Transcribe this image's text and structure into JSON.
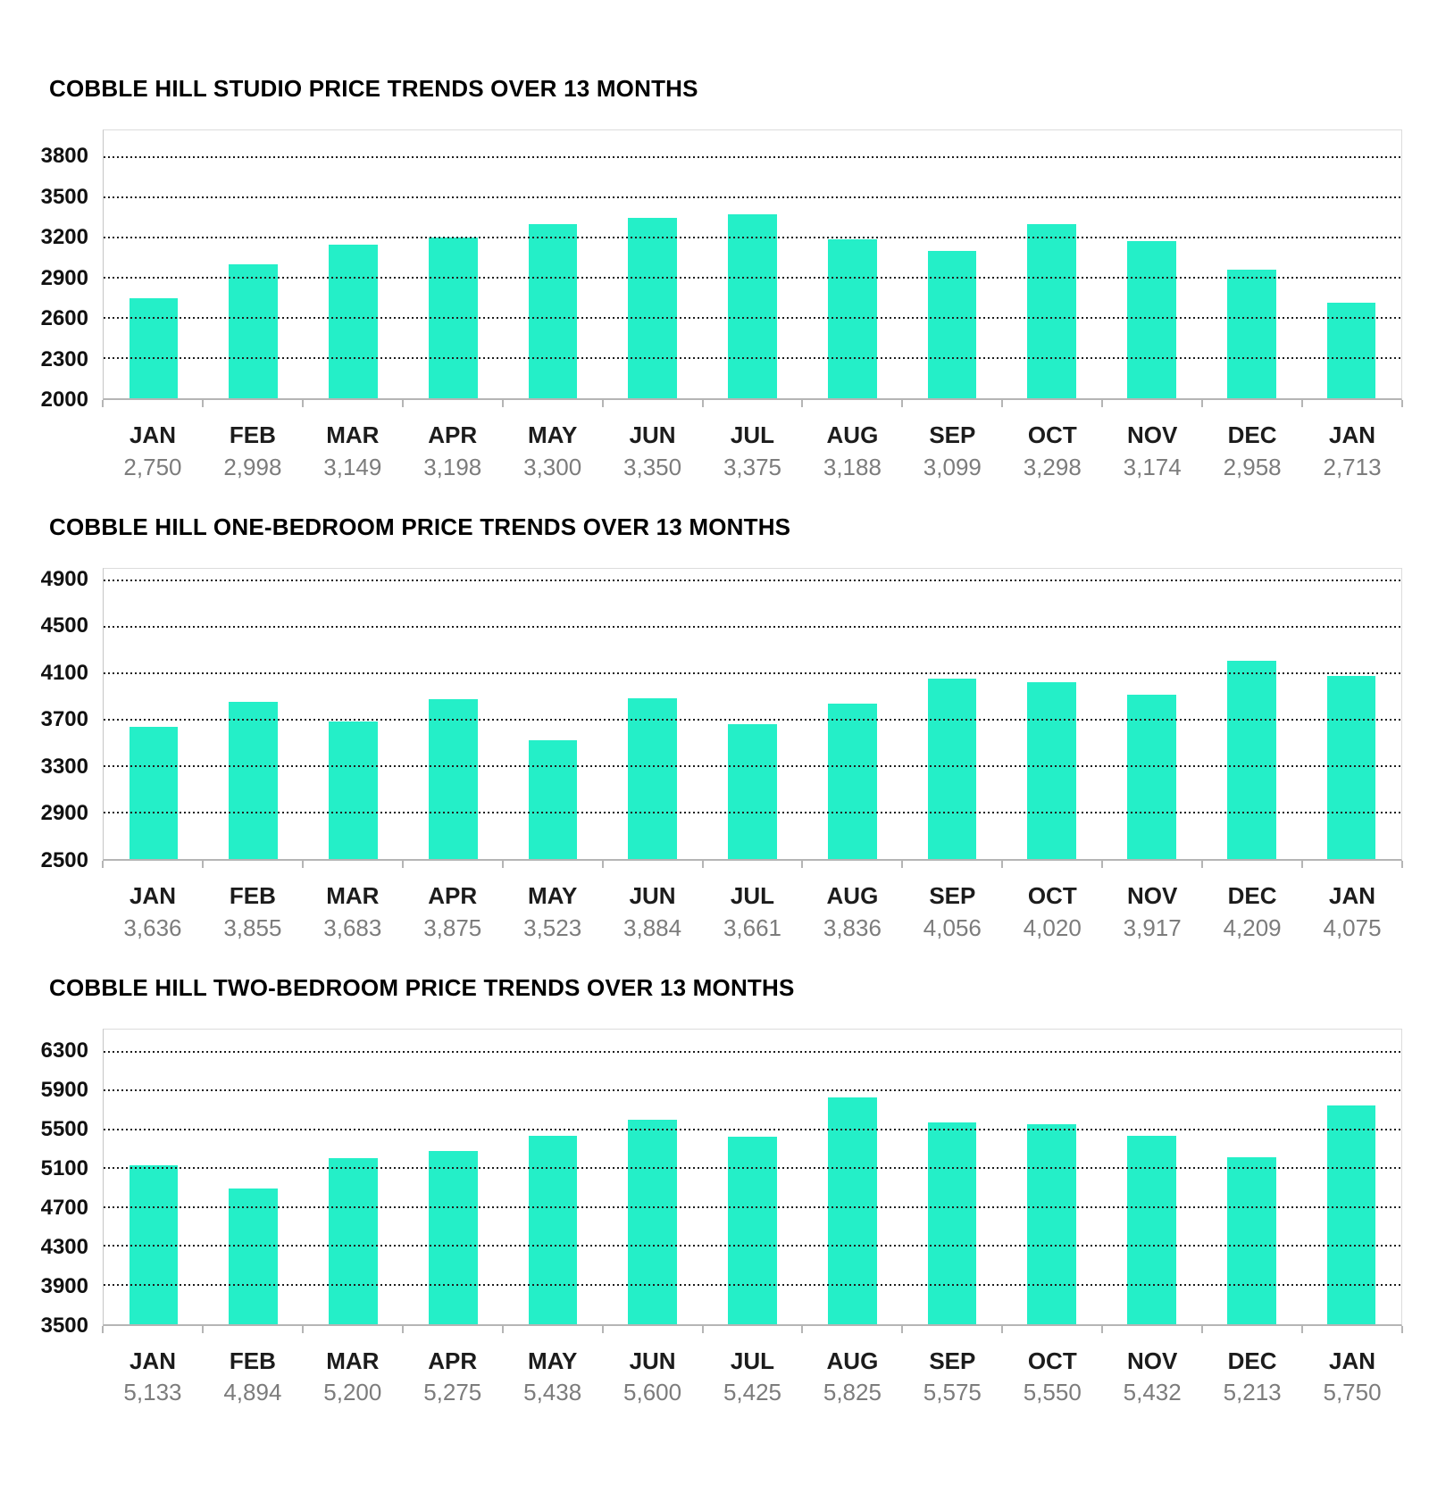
{
  "chart_data": [
    {
      "type": "bar",
      "title": "COBBLE HILL STUDIO PRICE TRENDS OVER 13 MONTHS",
      "categories": [
        "JAN",
        "FEB",
        "MAR",
        "APR",
        "MAY",
        "JUN",
        "JUL",
        "AUG",
        "SEP",
        "OCT",
        "NOV",
        "DEC",
        "JAN"
      ],
      "values": [
        2750,
        2998,
        3149,
        3198,
        3300,
        3350,
        3375,
        3188,
        3099,
        3298,
        3174,
        2958,
        2713
      ],
      "value_labels": [
        "2,750",
        "2,998",
        "3,149",
        "3,198",
        "3,300",
        "3,350",
        "3,375",
        "3,188",
        "3,099",
        "3,298",
        "3,174",
        "2,958",
        "2,713"
      ],
      "y_ticks": [
        3800,
        3500,
        3200,
        2900,
        2600,
        2300,
        2000
      ],
      "ylim": [
        2000,
        4000
      ],
      "xlabel": "",
      "ylabel": "",
      "grid": "dotted-horizontal",
      "legend": "none",
      "bar_color": "#24efc8"
    },
    {
      "type": "bar",
      "title": "COBBLE HILL ONE-BEDROOM PRICE TRENDS OVER 13 MONTHS",
      "categories": [
        "JAN",
        "FEB",
        "MAR",
        "APR",
        "MAY",
        "JUN",
        "JUL",
        "AUG",
        "SEP",
        "OCT",
        "NOV",
        "DEC",
        "JAN"
      ],
      "values": [
        3636,
        3855,
        3683,
        3875,
        3523,
        3884,
        3661,
        3836,
        4056,
        4020,
        3917,
        4209,
        4075
      ],
      "value_labels": [
        "3,636",
        "3,855",
        "3,683",
        "3,875",
        "3,523",
        "3,884",
        "3,661",
        "3,836",
        "4,056",
        "4,020",
        "3,917",
        "4,209",
        "4,075"
      ],
      "y_ticks": [
        4900,
        4500,
        4100,
        3700,
        3300,
        2900,
        2500
      ],
      "ylim": [
        2500,
        5000
      ],
      "xlabel": "",
      "ylabel": "",
      "grid": "dotted-horizontal",
      "legend": "none",
      "bar_color": "#24efc8"
    },
    {
      "type": "bar",
      "title": "COBBLE HILL TWO-BEDROOM PRICE TRENDS OVER 13 MONTHS",
      "categories": [
        "JAN",
        "FEB",
        "MAR",
        "APR",
        "MAY",
        "JUN",
        "JUL",
        "AUG",
        "SEP",
        "OCT",
        "NOV",
        "DEC",
        "JAN"
      ],
      "values": [
        5133,
        4894,
        5200,
        5275,
        5438,
        5600,
        5425,
        5825,
        5575,
        5550,
        5432,
        5213,
        5750
      ],
      "value_labels": [
        "5,133",
        "4,894",
        "5,200",
        "5,275",
        "5,438",
        "5,600",
        "5,425",
        "5,825",
        "5,575",
        "5,550",
        "5,432",
        "5,213",
        "5,750"
      ],
      "y_ticks": [
        6300,
        5900,
        5500,
        5100,
        4700,
        4300,
        3900,
        3500
      ],
      "ylim": [
        3500,
        6530
      ],
      "xlabel": "",
      "ylabel": "",
      "grid": "dotted-horizontal",
      "legend": "none",
      "bar_color": "#24efc8"
    }
  ]
}
